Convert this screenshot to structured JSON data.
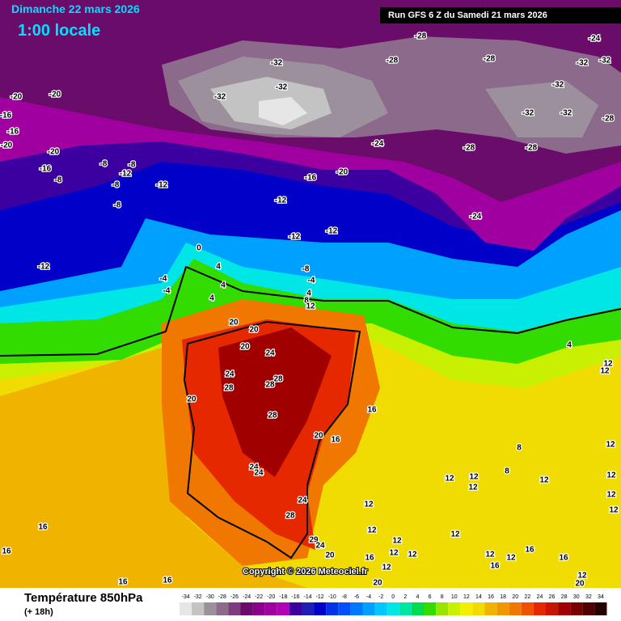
{
  "header": {
    "date": "Dimanche 22 mars 2026",
    "time": "1:00 locale",
    "run": "Run GFS 6 Z du Samedi 21 mars 2026"
  },
  "copyright": "Copyright © 2026 Meteociel.fr",
  "legend": {
    "title": "Température 850hPa",
    "lead": "(+ 18h)",
    "ticks": [
      -34,
      -32,
      -30,
      -28,
      -26,
      -24,
      -22,
      -20,
      -18,
      -16,
      -14,
      -12,
      -10,
      -8,
      -6,
      -4,
      -2,
      0,
      2,
      4,
      6,
      8,
      10,
      12,
      14,
      16,
      18,
      20,
      22,
      24,
      26,
      28,
      30,
      32,
      34
    ],
    "colors": [
      "#e6e6e6",
      "#c3c3c3",
      "#9d909d",
      "#8c6a8c",
      "#7d3c7d",
      "#6a0c6a",
      "#8a008a",
      "#a000a0",
      "#b400b4",
      "#3c00a0",
      "#1e1eb4",
      "#0000c8",
      "#0032e6",
      "#0050ff",
      "#0078ff",
      "#00a0ff",
      "#00c8ff",
      "#00e6e6",
      "#00e6a0",
      "#00dc50",
      "#32dc00",
      "#96e600",
      "#c8f000",
      "#f0f000",
      "#f0dc00",
      "#f0b400",
      "#f09600",
      "#f07800",
      "#f05000",
      "#e62800",
      "#c81400",
      "#a00000",
      "#780000",
      "#500000",
      "#280000"
    ]
  },
  "labels": [
    -28,
    -24,
    -32,
    -28,
    -28,
    -32,
    -32,
    -32,
    -32,
    -32,
    -32,
    -32,
    -28,
    -28,
    -28,
    -24,
    -24,
    -20,
    -20,
    -16,
    -16,
    -20,
    -20,
    -8,
    -8,
    -16,
    -12,
    -8,
    -12,
    -8,
    -20,
    -16,
    -8,
    -12,
    -12,
    -12,
    -12,
    0,
    -8,
    4,
    -4,
    -4,
    -4,
    4,
    4,
    4,
    8,
    12,
    20,
    20,
    20,
    24,
    24,
    28,
    28,
    28,
    20,
    28,
    16,
    20,
    16,
    8,
    24,
    24,
    8,
    12,
    12,
    12,
    12,
    24,
    12,
    28,
    12,
    4,
    12,
    12,
    12,
    12,
    12,
    12,
    12,
    29,
    24,
    20,
    12,
    12,
    16,
    16,
    12,
    12,
    16,
    16,
    12,
    16,
    12,
    16,
    12,
    20,
    20,
    16,
    16
  ]
}
